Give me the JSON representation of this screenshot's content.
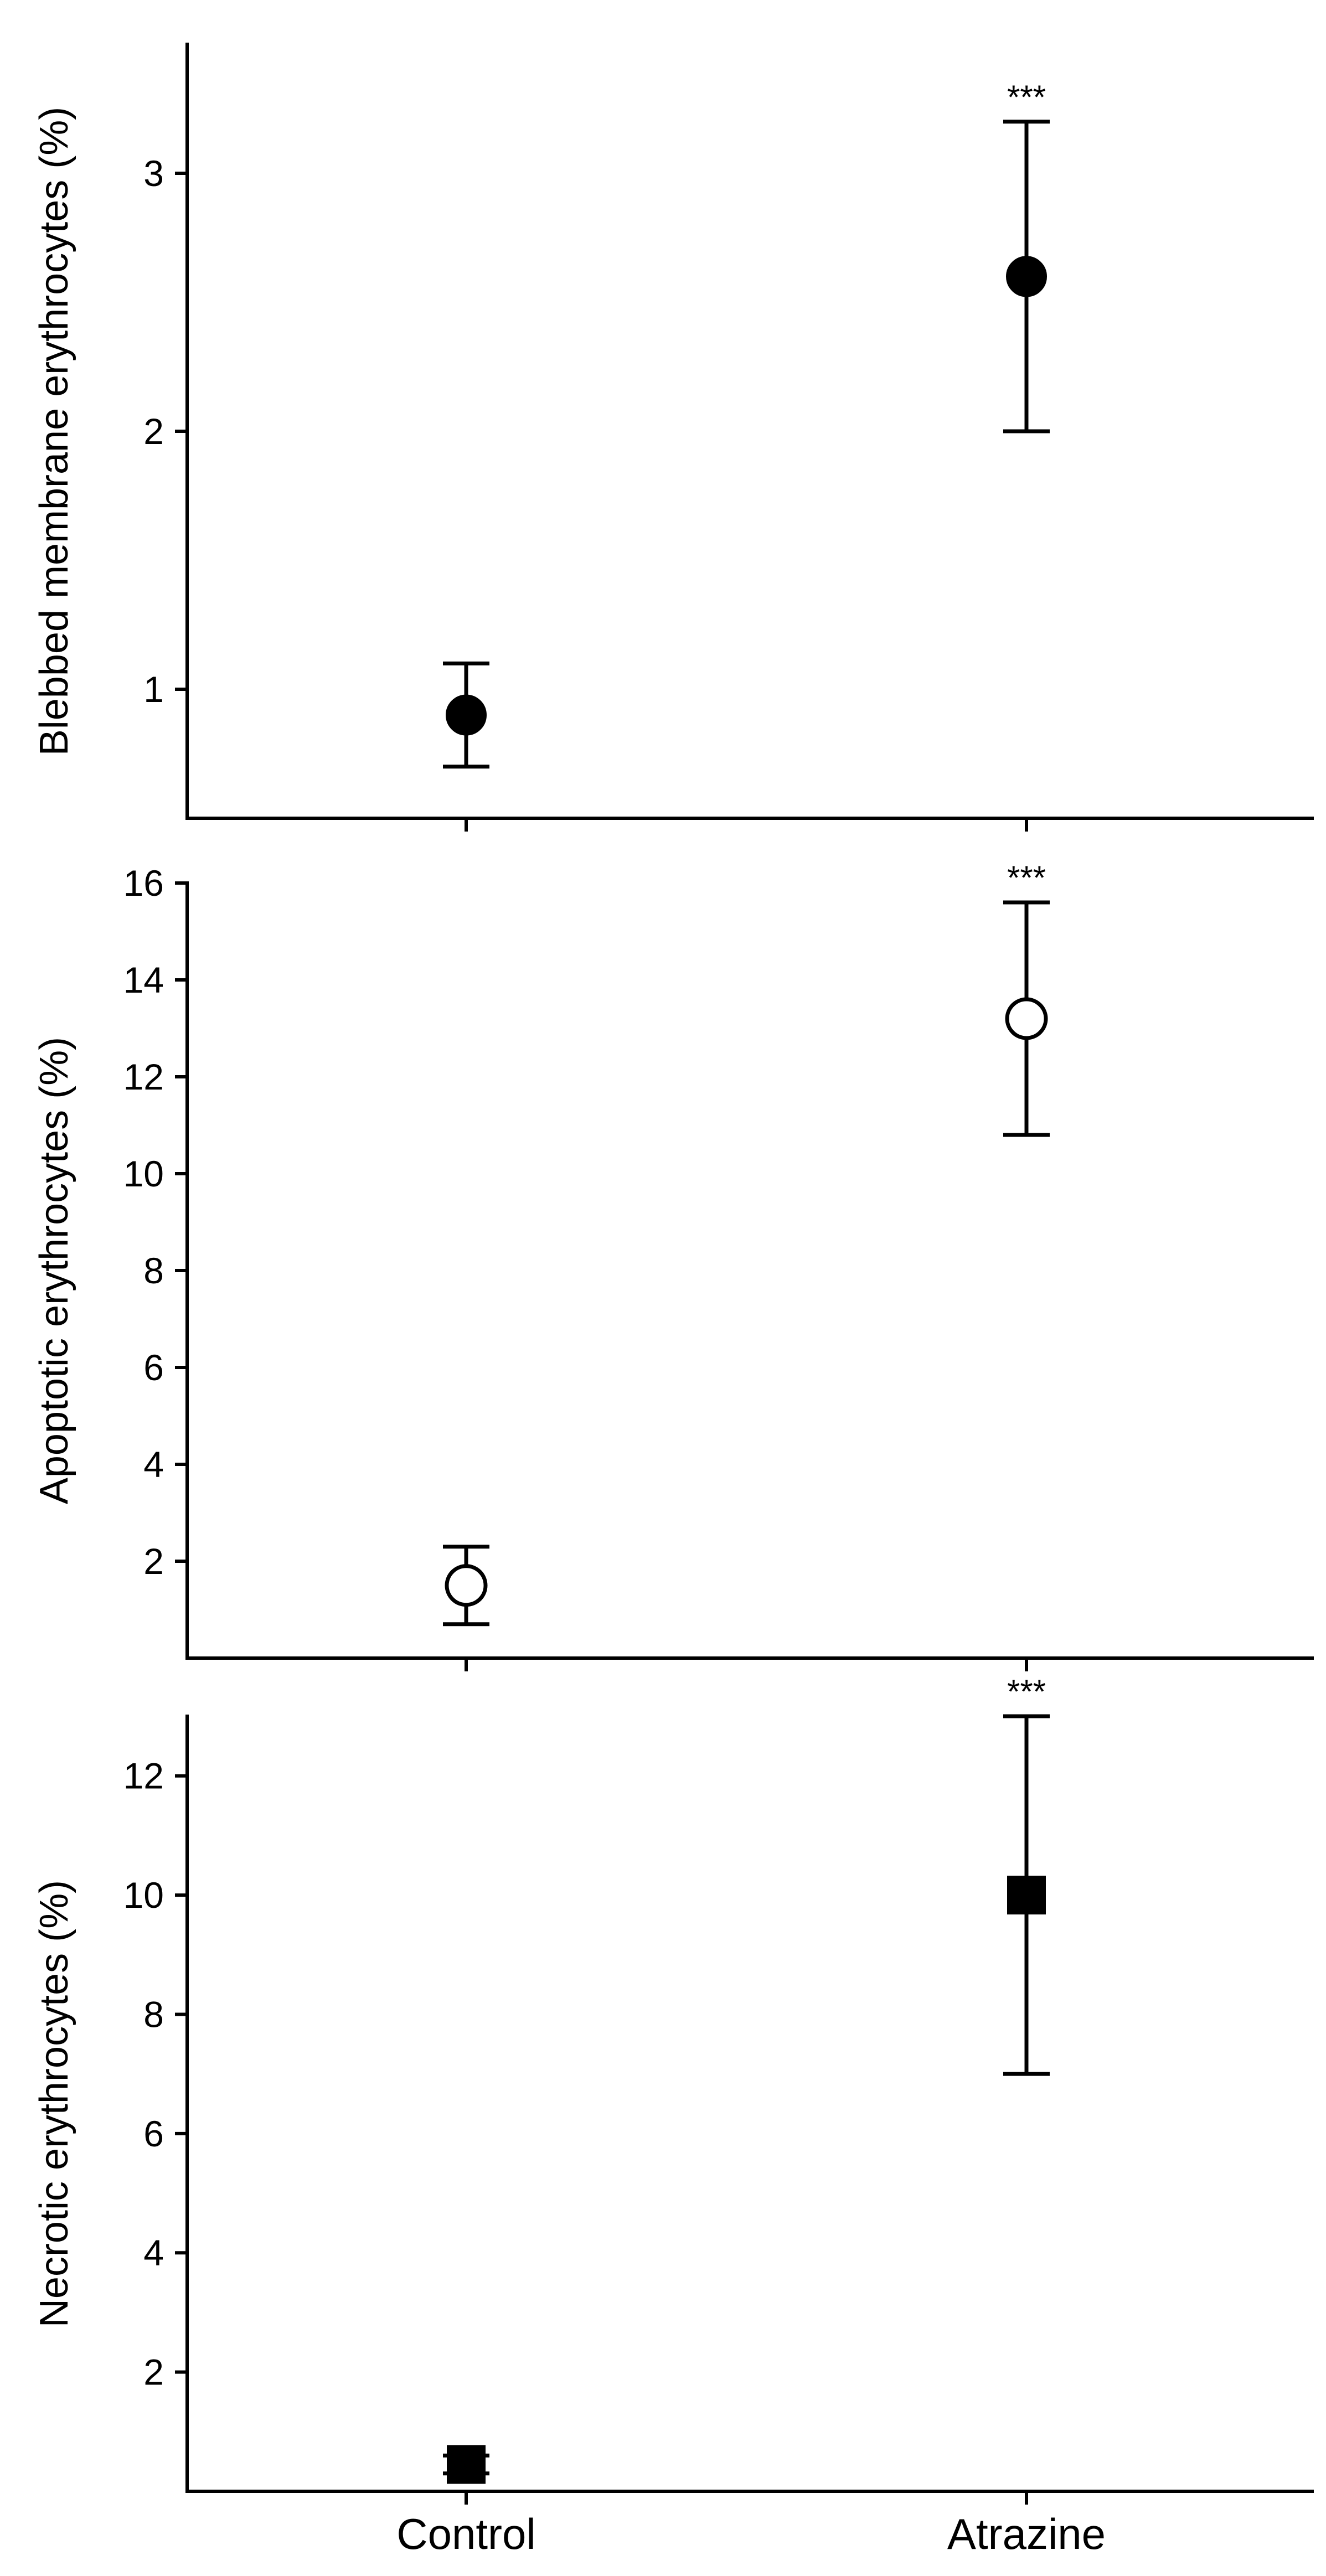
{
  "chart_data": [
    {
      "type": "scatter",
      "ylabel": "Blebbed membrane erythrocytes (%)",
      "xlabel": "",
      "categories": [
        "Control",
        "Atrazine"
      ],
      "values": [
        0.9,
        2.6
      ],
      "error_low": [
        0.7,
        2.0
      ],
      "error_high": [
        1.1,
        3.2
      ],
      "annotations": [
        "",
        "***"
      ],
      "ylim": [
        0.5,
        3.5
      ],
      "yticks": [
        1,
        2,
        3
      ],
      "marker": "filled-circle",
      "show_x_tick_labels": false
    },
    {
      "type": "scatter",
      "ylabel": "Apoptotic erythrocytes (%)",
      "xlabel": "",
      "categories": [
        "Control",
        "Atrazine"
      ],
      "values": [
        1.5,
        13.2
      ],
      "error_low": [
        0.7,
        10.8
      ],
      "error_high": [
        2.3,
        15.6
      ],
      "annotations": [
        "",
        "***"
      ],
      "ylim": [
        0,
        16
      ],
      "yticks": [
        2,
        4,
        6,
        8,
        10,
        12,
        14,
        16
      ],
      "marker": "open-circle",
      "show_x_tick_labels": false
    },
    {
      "type": "scatter",
      "ylabel": "Necrotic erythrocytes (%)",
      "xlabel": "",
      "categories": [
        "Control",
        "Atrazine"
      ],
      "values": [
        0.45,
        10.0
      ],
      "error_low": [
        0.3,
        7.0
      ],
      "error_high": [
        0.6,
        13.0
      ],
      "annotations": [
        "",
        "***"
      ],
      "ylim": [
        0,
        13
      ],
      "yticks": [
        2,
        4,
        6,
        8,
        10,
        12
      ],
      "marker": "filled-square",
      "show_x_tick_labels": true
    }
  ]
}
